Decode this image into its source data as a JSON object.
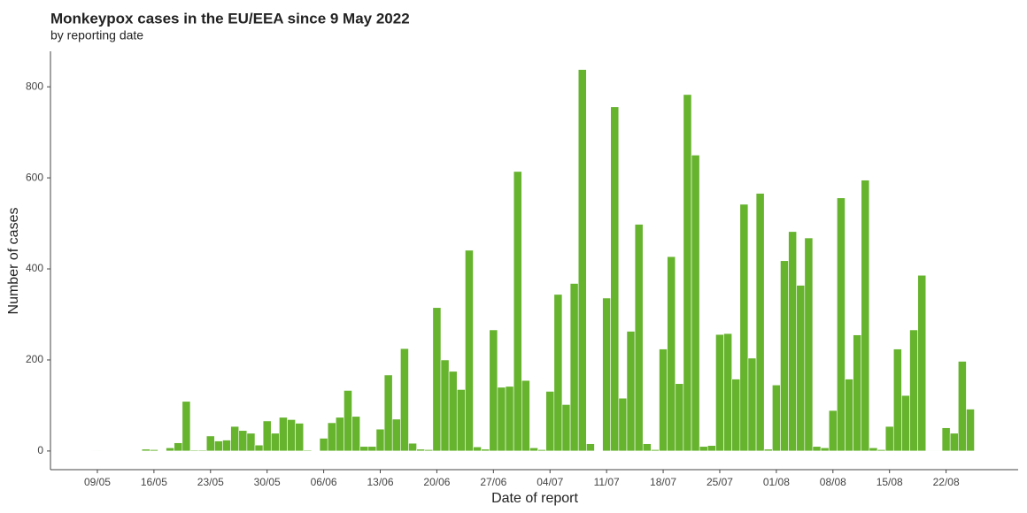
{
  "chart_data": {
    "type": "bar",
    "title": "Monkeypox cases in the EU/EEA since 9 May 2022",
    "subtitle": "by reporting date",
    "x_label": "Date of report",
    "y_label": "Number of cases",
    "color": "#66b32e",
    "categories": [
      "09/05",
      null,
      null,
      null,
      null,
      null,
      null,
      "16/05",
      null,
      null,
      null,
      null,
      null,
      null,
      "23/05",
      null,
      null,
      null,
      null,
      null,
      null,
      "30/05",
      null,
      null,
      null,
      null,
      null,
      null,
      "06/06",
      null,
      null,
      null,
      null,
      null,
      null,
      "13/06",
      null,
      null,
      null,
      null,
      null,
      null,
      "20/06",
      null,
      null,
      null,
      null,
      null,
      null,
      "27/06",
      null,
      null,
      null,
      null,
      null,
      null,
      "04/07",
      null,
      null,
      null,
      null,
      null,
      null,
      "11/07",
      null,
      null,
      null,
      null,
      null,
      null,
      "18/07",
      null,
      null,
      null,
      null,
      null,
      null,
      "25/07",
      null,
      null,
      null,
      null,
      null,
      null,
      "01/08",
      null,
      null,
      null,
      null,
      null,
      null,
      "08/08",
      null,
      null,
      null,
      null,
      null,
      null,
      "15/08",
      null,
      null,
      null,
      null,
      null,
      null,
      "22/08",
      null,
      null,
      null
    ],
    "values": [
      1,
      0,
      0,
      0,
      0,
      0,
      4,
      3,
      0,
      7,
      18,
      109,
      2,
      2,
      33,
      22,
      24,
      54,
      45,
      39,
      13,
      66,
      39,
      74,
      69,
      61,
      2,
      0,
      28,
      62,
      74,
      133,
      76,
      10,
      10,
      48,
      167,
      70,
      225,
      17,
      4,
      3,
      315,
      200,
      175,
      135,
      441,
      9,
      4,
      266,
      140,
      142,
      614,
      155,
      7,
      3,
      131,
      344,
      102,
      368,
      838,
      16,
      0,
      336,
      756,
      116,
      263,
      498,
      16,
      3,
      224,
      427,
      148,
      783,
      650,
      10,
      12,
      256,
      258,
      158,
      542,
      204,
      566,
      4,
      145,
      418,
      482,
      364,
      468,
      10,
      7,
      89,
      556,
      158,
      255,
      595,
      7,
      3,
      54,
      224,
      122,
      266,
      386,
      1,
      1,
      51,
      39,
      197,
      92
    ],
    "ylim": [
      -41,
      878
    ],
    "yticks": [
      0,
      200,
      400,
      600,
      800
    ],
    "grid": false
  }
}
